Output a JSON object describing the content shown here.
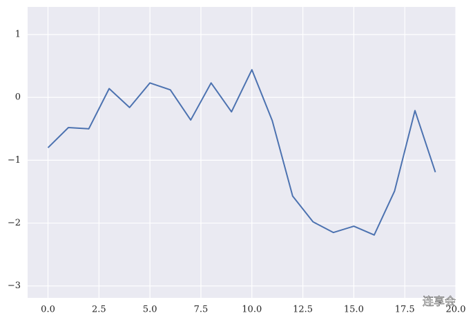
{
  "chart_data": {
    "type": "line",
    "x": [
      0,
      1,
      2,
      3,
      4,
      5,
      6,
      7,
      8,
      9,
      10,
      11,
      12,
      13,
      14,
      15,
      16,
      17,
      18,
      19
    ],
    "series": [
      {
        "color": "#4c72b0",
        "values": [
          -0.8,
          -0.48,
          -0.5,
          0.14,
          -0.16,
          0.23,
          0.12,
          -0.36,
          0.23,
          -0.23,
          0.44,
          -0.37,
          -1.57,
          -1.98,
          -2.15,
          -2.05,
          -2.19,
          -1.49,
          -0.21,
          -1.19
        ]
      }
    ],
    "xlim": [
      -1,
      20
    ],
    "ylim": [
      -3.19,
      1.44
    ],
    "xticks": [
      {
        "value": 0,
        "label": "0.0"
      },
      2.5,
      {
        "value": 5,
        "label": "5.0"
      },
      7.5,
      {
        "value": 10,
        "label": "10.0"
      },
      12.5,
      {
        "value": 15,
        "label": "15.0"
      },
      17.5,
      {
        "value": 20,
        "label": "20.0"
      }
    ],
    "yticks": [
      {
        "value": -3,
        "label": "−3"
      },
      {
        "value": -2,
        "label": "−2"
      },
      {
        "value": -1,
        "label": "−1"
      },
      0,
      1
    ],
    "grid": true,
    "watermark": "连享会"
  }
}
